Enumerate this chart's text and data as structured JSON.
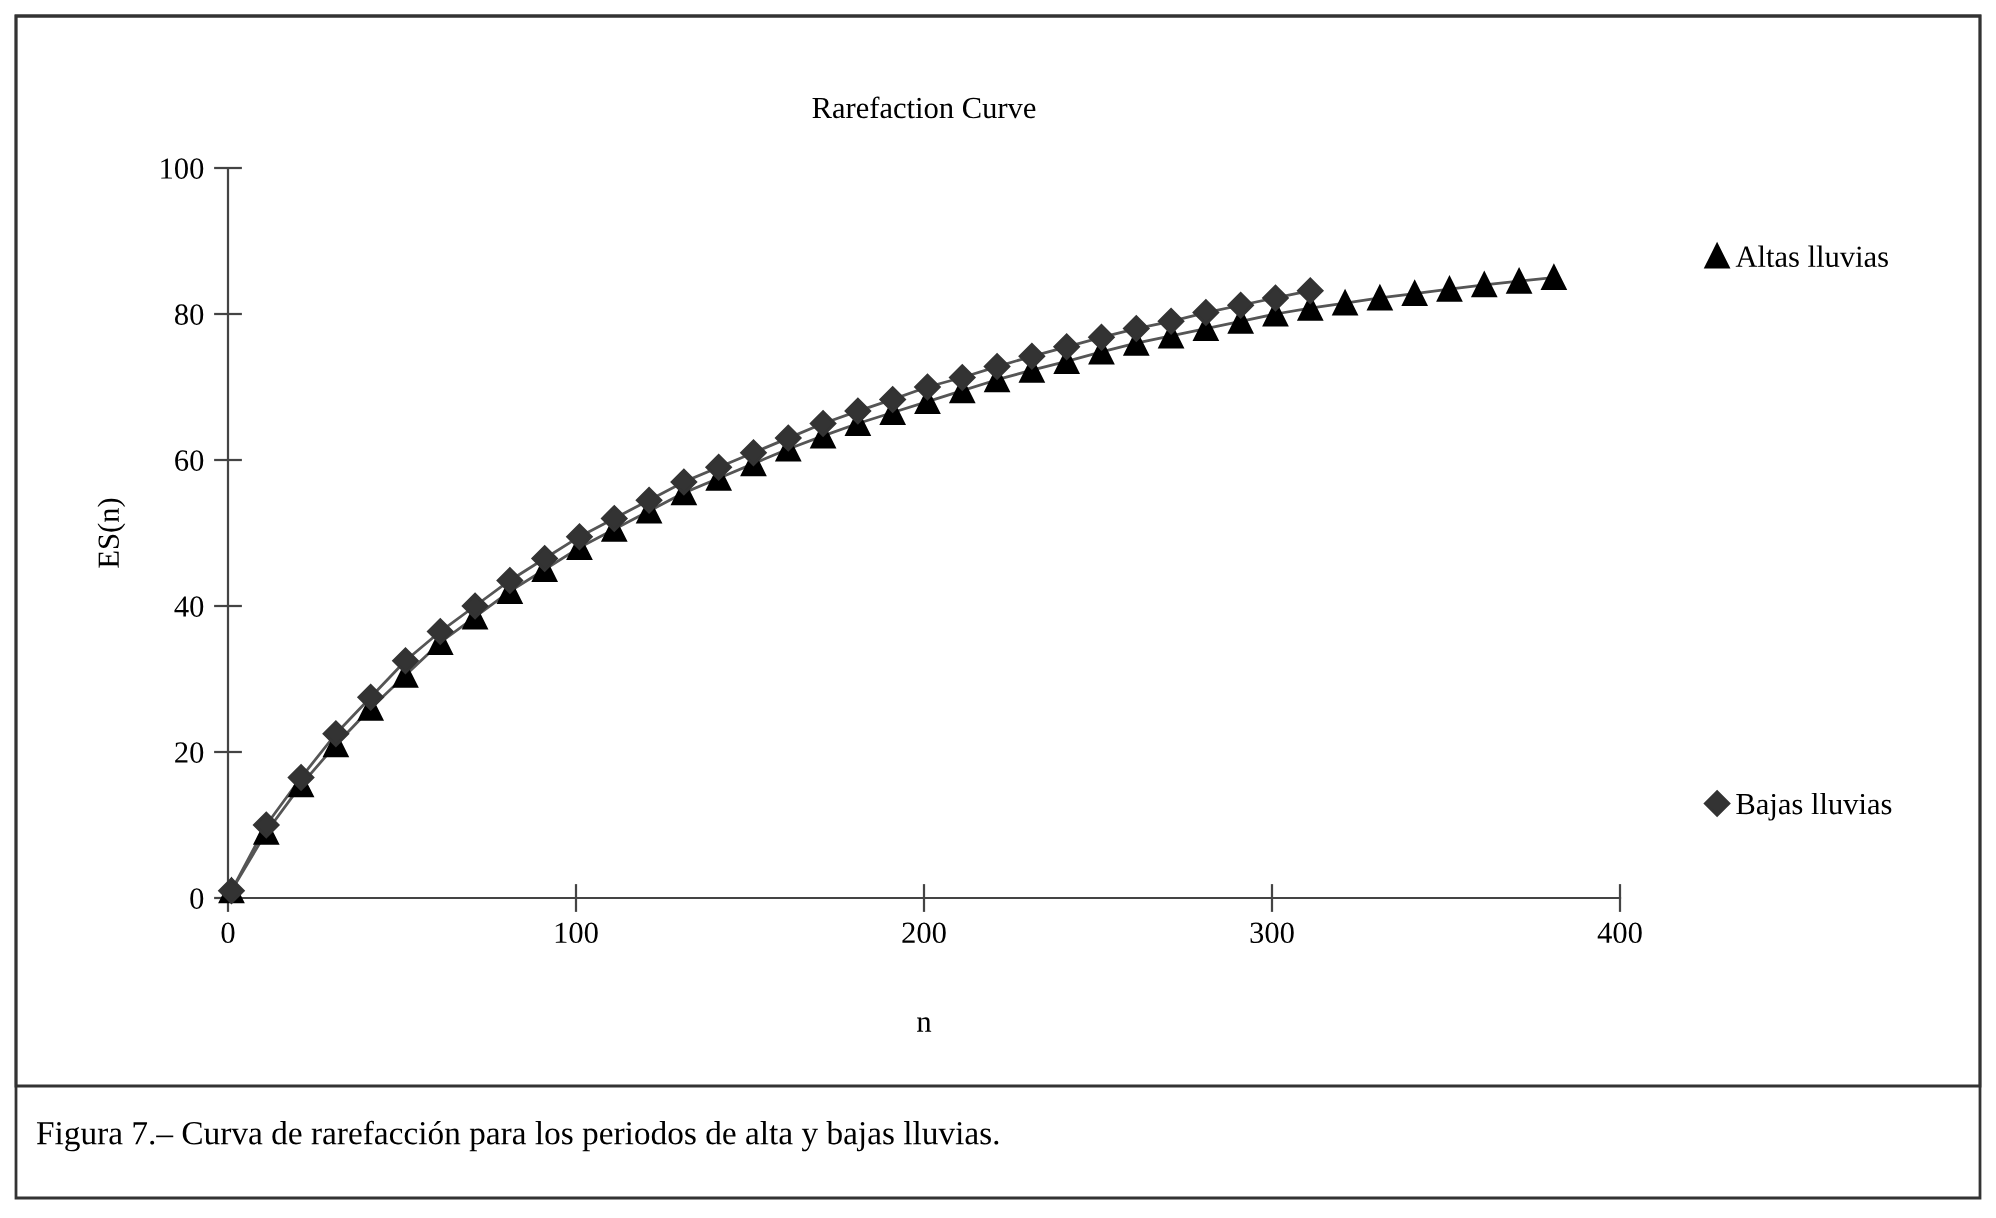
{
  "chart_data": {
    "type": "line",
    "title": "Rarefaction Curve",
    "xlabel": "n",
    "ylabel": "ES(n)",
    "annotations": [
      "Figura 7.– Curva de rarefacción para los periodos de alta y bajas lluvias."
    ],
    "xlim": [
      0,
      400
    ],
    "xticks": [
      0,
      100,
      200,
      300,
      400
    ],
    "ylim": [
      0,
      100
    ],
    "yticks": [
      0,
      20,
      40,
      60,
      80,
      100
    ],
    "grid": false,
    "legend": "right",
    "series": [
      {
        "name": "Altas lluvias",
        "color": "#000000",
        "marker": "triangle",
        "x": [
          1,
          11,
          21,
          31,
          41,
          51,
          61,
          71,
          81,
          91,
          101,
          111,
          121,
          131,
          141,
          151,
          161,
          171,
          181,
          191,
          201,
          211,
          221,
          231,
          241,
          251,
          261,
          271,
          281,
          291,
          301,
          311,
          321,
          331,
          341,
          351,
          361,
          371,
          381
        ],
        "values": [
          1,
          9,
          15.5,
          21,
          26,
          30.5,
          35,
          38.5,
          42,
          45,
          48,
          50.5,
          53,
          55.5,
          57.5,
          59.5,
          61.5,
          63.3,
          65,
          66.5,
          68,
          69.5,
          71,
          72.3,
          73.5,
          74.8,
          76,
          77,
          78,
          79,
          80,
          80.8,
          81.5,
          82.2,
          82.8,
          83.4,
          84,
          84.5,
          85
        ]
      },
      {
        "name": "Bajas lluvias",
        "color": "#333333",
        "marker": "diamond",
        "x": [
          1,
          11,
          21,
          31,
          41,
          51,
          61,
          71,
          81,
          91,
          101,
          111,
          121,
          131,
          141,
          151,
          161,
          171,
          181,
          191,
          201,
          211,
          221,
          231,
          241,
          251,
          261,
          271,
          281,
          291,
          301,
          311
        ],
        "values": [
          1,
          10,
          16.5,
          22.5,
          27.5,
          32.5,
          36.5,
          40,
          43.5,
          46.5,
          49.5,
          52,
          54.5,
          57,
          59,
          61,
          63,
          65,
          66.7,
          68.3,
          70,
          71.3,
          72.8,
          74.2,
          75.5,
          76.8,
          78,
          79,
          80.2,
          81.2,
          82.2,
          83.2
        ]
      }
    ]
  }
}
